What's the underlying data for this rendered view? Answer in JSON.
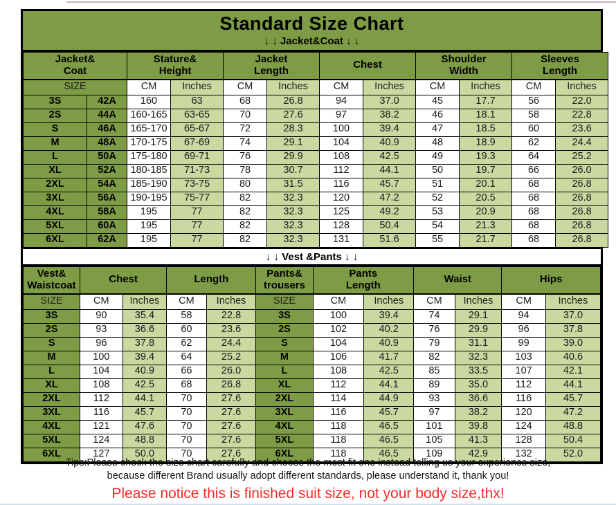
{
  "page": {
    "title": "Standard Size Chart",
    "jacket_divider": "↓ ↓  Jacket&Coat ↓ ↓",
    "vest_divider": "↓ ↓  Vest &Pants ↓ ↓",
    "tips_line1": "Tips:Please check the size chart carefully and choose the most fit one instead telling us your experience size,",
    "tips_line2": "because different Brand usually adopt different standards, please understand it, thank you!",
    "notice": "Please notice this is finished suit size, not your body size,thx!"
  },
  "colors": {
    "header_green": "#7E9C45",
    "light_green": "#C9D9A0",
    "white_cell": "#FFFFFF",
    "notice_red": "#F42A2A",
    "border_black": "#000000"
  },
  "jacket_table": {
    "groups": [
      "Jacket&\nCoat",
      "Stature&\nHeight",
      "Jacket\nLength",
      "Chest",
      "Shoulder\nWidth",
      "Sleeves\nLength"
    ],
    "units": [
      "SIZE",
      "CM",
      "Inches",
      "CM",
      "Inches",
      "CM",
      "Inches",
      "CM",
      "Inches",
      "CM",
      "Inches"
    ],
    "rows": [
      [
        "3S",
        "42A",
        "160",
        "63",
        "68",
        "26.8",
        "94",
        "37.0",
        "45",
        "17.7",
        "56",
        "22.0"
      ],
      [
        "2S",
        "44A",
        "160-165",
        "63-65",
        "70",
        "27.6",
        "97",
        "38.2",
        "46",
        "18.1",
        "58",
        "22.8"
      ],
      [
        "S",
        "46A",
        "165-170",
        "65-67",
        "72",
        "28.3",
        "100",
        "39.4",
        "47",
        "18.5",
        "60",
        "23.6"
      ],
      [
        "M",
        "48A",
        "170-175",
        "67-69",
        "74",
        "29.1",
        "104",
        "40.9",
        "48",
        "18.9",
        "62",
        "24.4"
      ],
      [
        "L",
        "50A",
        "175-180",
        "69-71",
        "76",
        "29.9",
        "108",
        "42.5",
        "49",
        "19.3",
        "64",
        "25.2"
      ],
      [
        "XL",
        "52A",
        "180-185",
        "71-73",
        "78",
        "30.7",
        "112",
        "44.1",
        "50",
        "19.7",
        "66",
        "26.0"
      ],
      [
        "2XL",
        "54A",
        "185-190",
        "73-75",
        "80",
        "31.5",
        "116",
        "45.7",
        "51",
        "20.1",
        "68",
        "26.8"
      ],
      [
        "3XL",
        "56A",
        "190-195",
        "75-77",
        "82",
        "32.3",
        "120",
        "47.2",
        "52",
        "20.5",
        "68",
        "26.8"
      ],
      [
        "4XL",
        "58A",
        "195",
        "77",
        "82",
        "32.3",
        "125",
        "49.2",
        "53",
        "20.9",
        "68",
        "26.8"
      ],
      [
        "5XL",
        "60A",
        "195",
        "77",
        "82",
        "32.3",
        "128",
        "50.4",
        "54",
        "21.3",
        "68",
        "26.8"
      ],
      [
        "6XL",
        "62A",
        "195",
        "77",
        "82",
        "32.3",
        "131",
        "51.6",
        "55",
        "21.7",
        "68",
        "26.8"
      ]
    ]
  },
  "vest_table": {
    "groups": [
      "Vest&\nWaistcoat",
      "Chest",
      "Length",
      "Pants&\ntrousers",
      "Pants\nLength",
      "Waist",
      "Hips"
    ],
    "units": [
      "SIZE",
      "CM",
      "Inches",
      "CM",
      "Inches",
      "SIZE",
      "CM",
      "Inches",
      "CM",
      "Inches",
      "CM",
      "Inches"
    ],
    "rows": [
      [
        "3S",
        "90",
        "35.4",
        "58",
        "22.8",
        "3S",
        "100",
        "39.4",
        "74",
        "29.1",
        "94",
        "37.0"
      ],
      [
        "2S",
        "93",
        "36.6",
        "60",
        "23.6",
        "2S",
        "102",
        "40.2",
        "76",
        "29.9",
        "96",
        "37.8"
      ],
      [
        "S",
        "96",
        "37.8",
        "62",
        "24.4",
        "S",
        "104",
        "40.9",
        "79",
        "31.1",
        "99",
        "39.0"
      ],
      [
        "M",
        "100",
        "39.4",
        "64",
        "25.2",
        "M",
        "106",
        "41.7",
        "82",
        "32.3",
        "103",
        "40.6"
      ],
      [
        "L",
        "104",
        "40.9",
        "66",
        "26.0",
        "L",
        "108",
        "42.5",
        "85",
        "33.5",
        "107",
        "42.1"
      ],
      [
        "XL",
        "108",
        "42.5",
        "68",
        "26.8",
        "XL",
        "112",
        "44.1",
        "89",
        "35.0",
        "112",
        "44.1"
      ],
      [
        "2XL",
        "112",
        "44.1",
        "70",
        "27.6",
        "2XL",
        "114",
        "44.9",
        "93",
        "36.6",
        "116",
        "45.7"
      ],
      [
        "3XL",
        "116",
        "45.7",
        "70",
        "27.6",
        "3XL",
        "116",
        "45.7",
        "97",
        "38.2",
        "120",
        "47.2"
      ],
      [
        "4XL",
        "121",
        "47.6",
        "70",
        "27.6",
        "4XL",
        "118",
        "46.5",
        "101",
        "39.8",
        "124",
        "48.8"
      ],
      [
        "5XL",
        "124",
        "48.8",
        "70",
        "27.6",
        "5XL",
        "118",
        "46.5",
        "105",
        "41.3",
        "128",
        "50.4"
      ],
      [
        "6XL",
        "127",
        "50.0",
        "70",
        "27.6",
        "6XL",
        "118",
        "46.5",
        "109",
        "42.9",
        "132",
        "52.0"
      ]
    ]
  }
}
